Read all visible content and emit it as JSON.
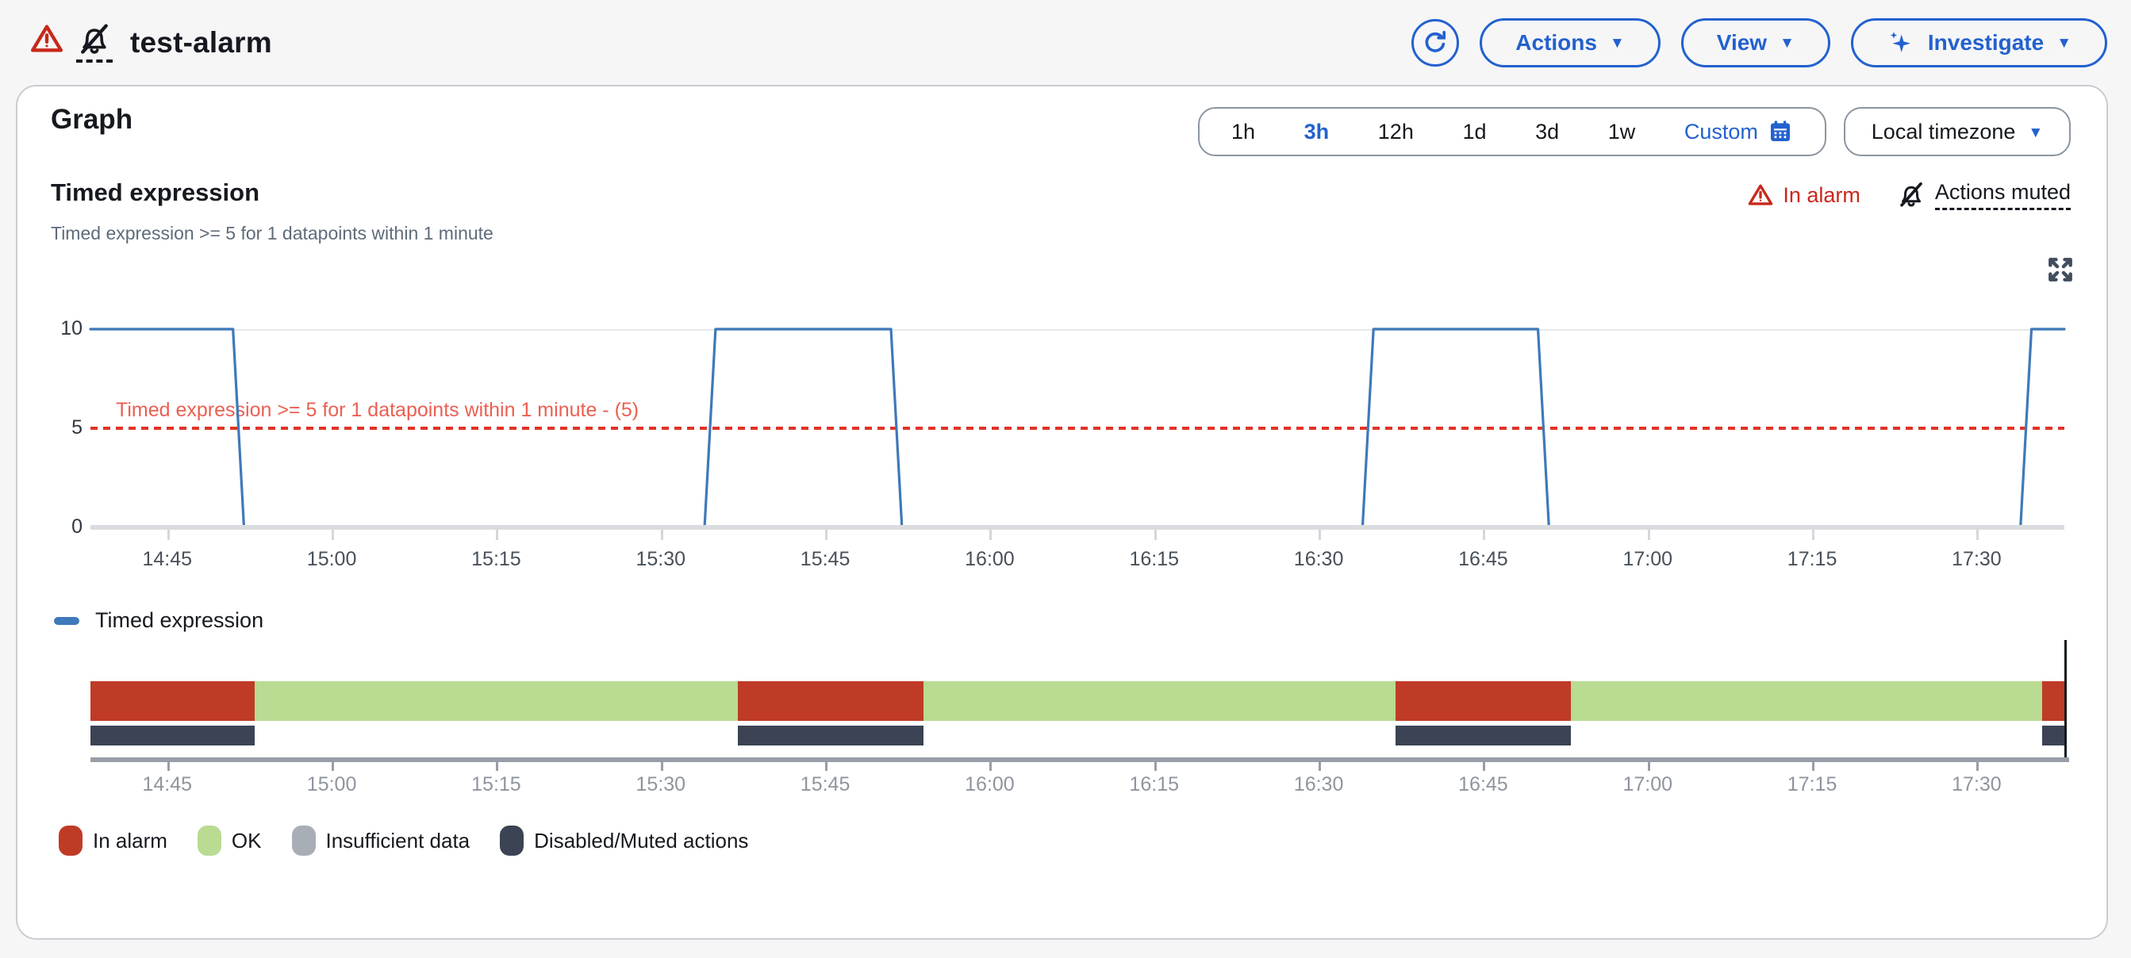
{
  "header": {
    "title": "test-alarm",
    "actions_label": "Actions",
    "view_label": "View",
    "investigate_label": "Investigate"
  },
  "panel": {
    "title": "Graph",
    "time_ranges": [
      "1h",
      "3h",
      "12h",
      "1d",
      "3d",
      "1w"
    ],
    "selected_range": "3h",
    "custom_label": "Custom",
    "timezone_label": "Local timezone",
    "metric_title": "Timed expression",
    "metric_subtitle": "Timed expression >= 5 for 1 datapoints within 1 minute",
    "in_alarm_label": "In alarm",
    "actions_muted_label": "Actions muted",
    "series_legend_label": "Timed expression"
  },
  "chart_data": {
    "type": "line",
    "title": "Timed expression",
    "ylim": [
      0,
      10
    ],
    "y_ticks": [
      10,
      5,
      0
    ],
    "x_window": {
      "start": "14:38",
      "end": "17:38",
      "minutes": 180
    },
    "x_ticks": [
      {
        "m": 7,
        "label": "14:45"
      },
      {
        "m": 22,
        "label": "15:00"
      },
      {
        "m": 37,
        "label": "15:15"
      },
      {
        "m": 52,
        "label": "15:30"
      },
      {
        "m": 67,
        "label": "15:45"
      },
      {
        "m": 82,
        "label": "16:00"
      },
      {
        "m": 97,
        "label": "16:15"
      },
      {
        "m": 112,
        "label": "16:30"
      },
      {
        "m": 127,
        "label": "16:45"
      },
      {
        "m": 142,
        "label": "17:00"
      },
      {
        "m": 157,
        "label": "17:15"
      },
      {
        "m": 172,
        "label": "17:30"
      }
    ],
    "series": [
      {
        "name": "Timed expression",
        "color": "#3e79b9",
        "points": [
          [
            0,
            10
          ],
          [
            13,
            10
          ],
          [
            14,
            0
          ],
          [
            56,
            0
          ],
          [
            57,
            10
          ],
          [
            73,
            10
          ],
          [
            74,
            0
          ],
          [
            116,
            0
          ],
          [
            117,
            10
          ],
          [
            132,
            10
          ],
          [
            133,
            0
          ],
          [
            176,
            0
          ],
          [
            177,
            10
          ],
          [
            180,
            10
          ]
        ]
      }
    ],
    "threshold": {
      "value": 5,
      "label": "Timed expression >= 5 for 1 datapoints within 1 minute - (5)"
    },
    "alarm_strip": {
      "segments": [
        {
          "state": "in_alarm",
          "from": 0,
          "to": 15
        },
        {
          "state": "ok",
          "from": 15,
          "to": 59
        },
        {
          "state": "in_alarm",
          "from": 59,
          "to": 76
        },
        {
          "state": "ok",
          "from": 76,
          "to": 119
        },
        {
          "state": "in_alarm",
          "from": 119,
          "to": 135
        },
        {
          "state": "ok",
          "from": 135,
          "to": 178
        },
        {
          "state": "in_alarm",
          "from": 178,
          "to": 180
        }
      ],
      "muted_bars": [
        [
          0,
          15
        ],
        [
          59,
          76
        ],
        [
          119,
          135
        ],
        [
          178,
          180
        ]
      ]
    },
    "state_legend": [
      {
        "key": "in_alarm",
        "label": "In alarm",
        "color": "#bf3b26"
      },
      {
        "key": "ok",
        "label": "OK",
        "color": "#b9db92"
      },
      {
        "key": "insufficient",
        "label": "Insufficient data",
        "color": "#a9aeb6"
      },
      {
        "key": "muted",
        "label": "Disabled/Muted actions",
        "color": "#3b4354"
      }
    ]
  },
  "colors": {
    "accent_blue": "#2361ce",
    "alarm_red": "#c8281c",
    "line_blue": "#3e79b9",
    "threshold_red": "#e13327",
    "threshold_label_red": "#eb5f52",
    "state_in_alarm": "#bf3b26",
    "state_ok": "#b9db92",
    "state_insufficient": "#a9aeb6",
    "state_muted": "#3b4354",
    "text": "#16191f",
    "text_secondary": "#5f6b7a"
  }
}
